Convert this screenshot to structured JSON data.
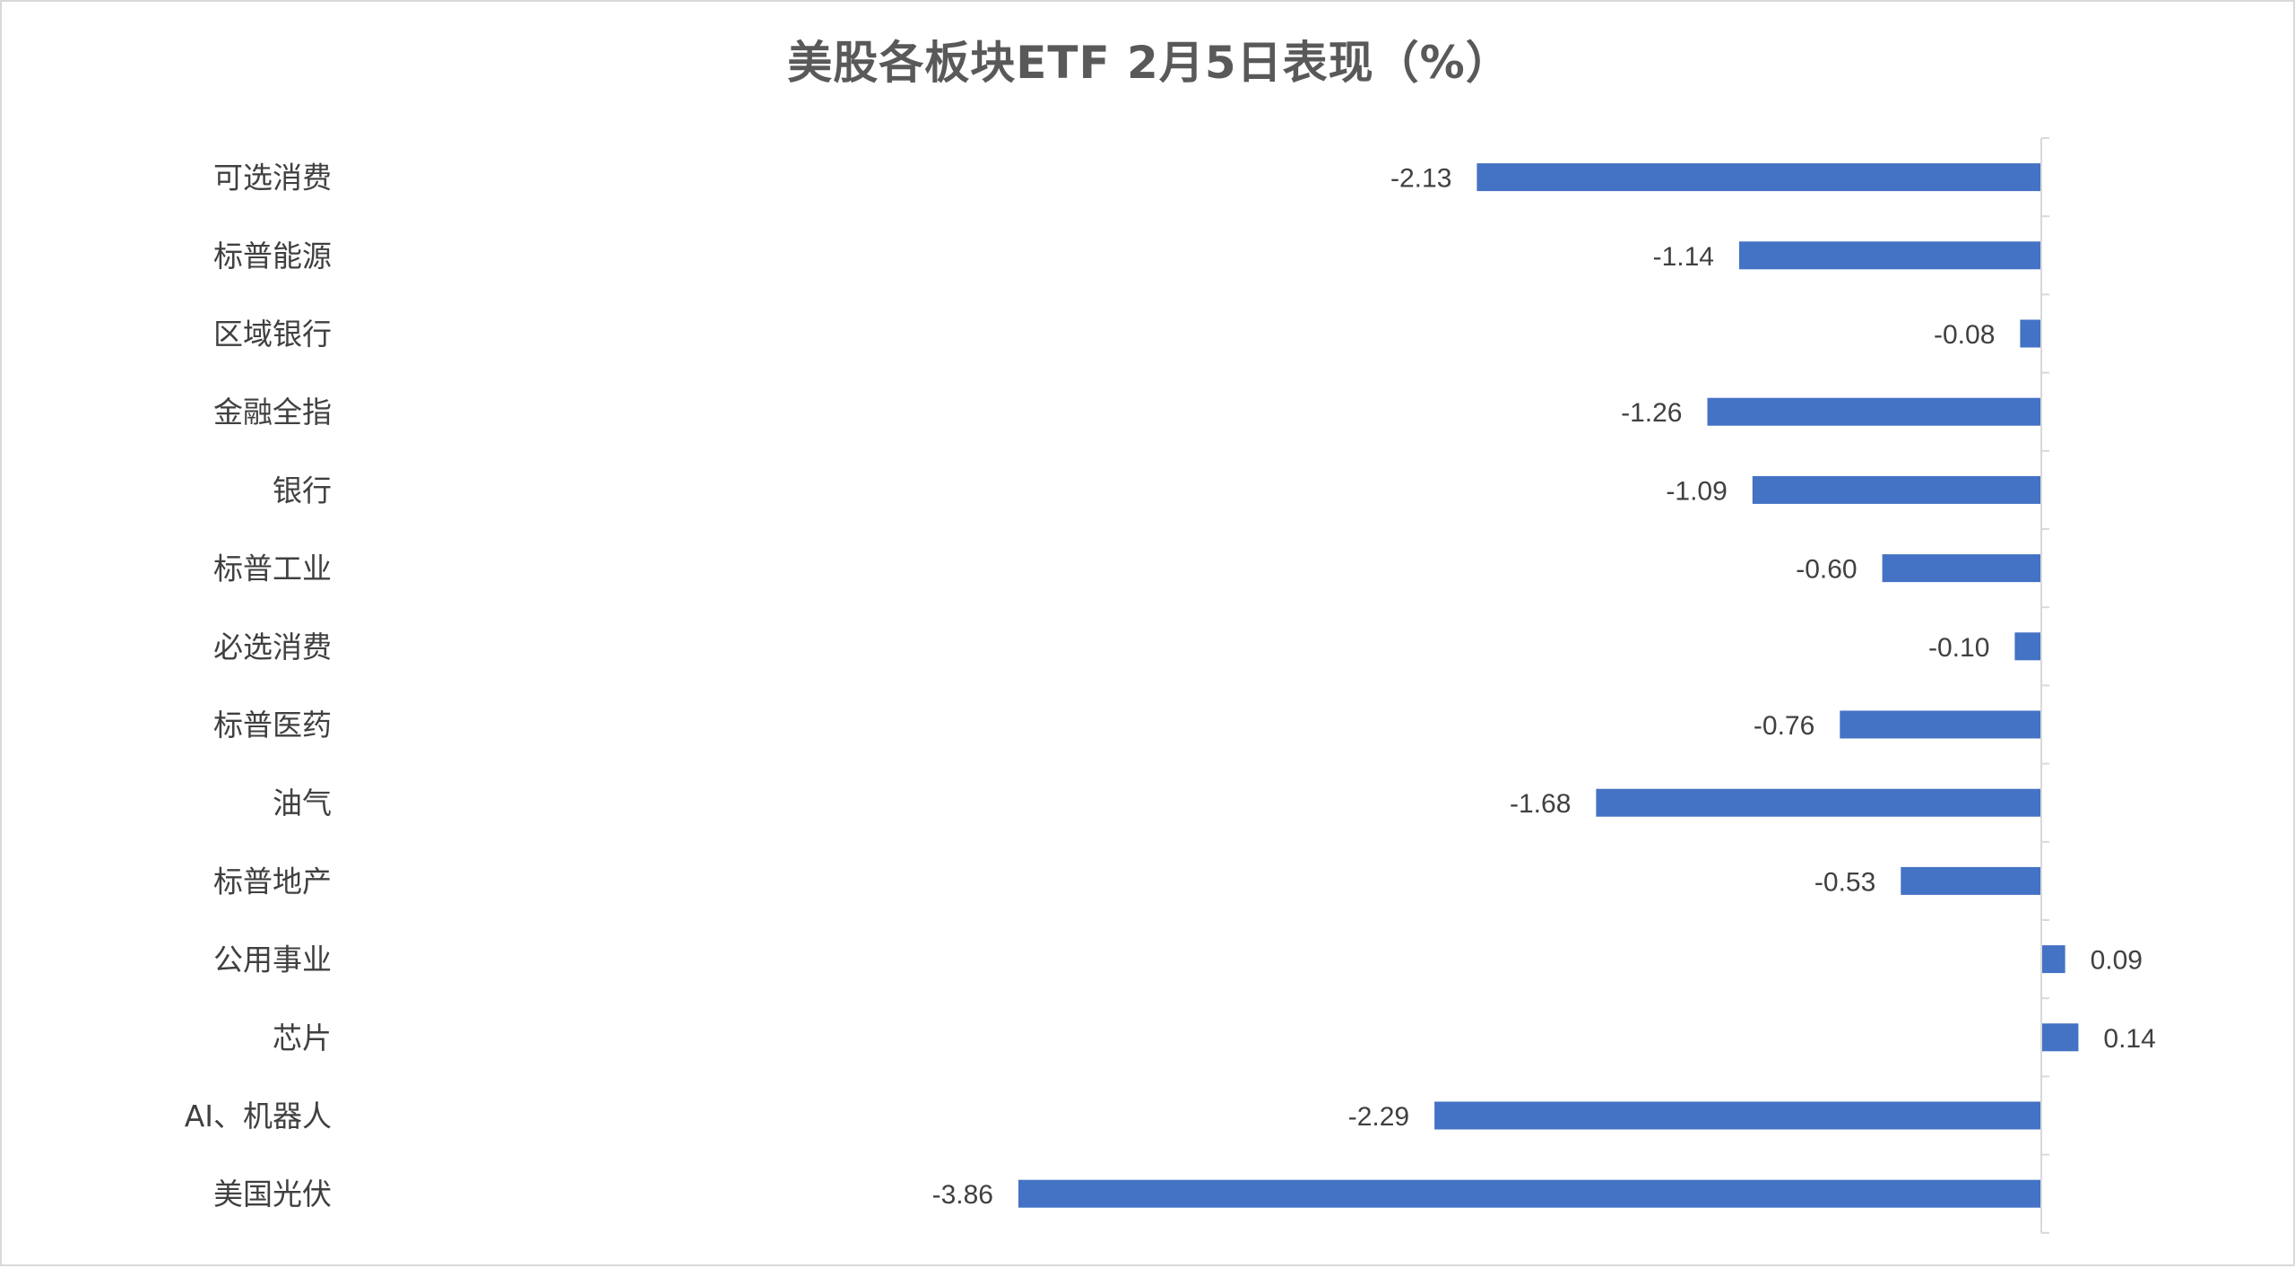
{
  "chart_data": {
    "type": "bar",
    "orientation": "horizontal",
    "title": "美股各板块ETF  2月5日表现（%）",
    "categories": [
      "可选消费",
      "标普能源",
      "区域银行",
      "金融全指",
      "银行",
      "标普工业",
      "必选消费",
      "标普医药",
      "油气",
      "标普地产",
      "公用事业",
      "芯片",
      "AI、机器人",
      "美国光伏"
    ],
    "values": [
      -2.13,
      -1.14,
      -0.08,
      -1.26,
      -1.09,
      -0.6,
      -0.1,
      -0.76,
      -1.68,
      -0.53,
      0.09,
      0.14,
      -2.29,
      -3.86
    ],
    "data_labels": [
      "-2.13",
      "-1.14",
      "-0.08",
      "-1.26",
      "-1.09",
      "-0.60",
      "-0.10",
      "-0.76",
      "-1.68",
      "-0.53",
      "0.09",
      "0.14",
      "-2.29",
      "-3.86"
    ],
    "xlim": [
      -3.86,
      0.14
    ],
    "bar_color": "#4472C4",
    "grid": false,
    "legend": false,
    "xlabel": "",
    "ylabel": ""
  }
}
